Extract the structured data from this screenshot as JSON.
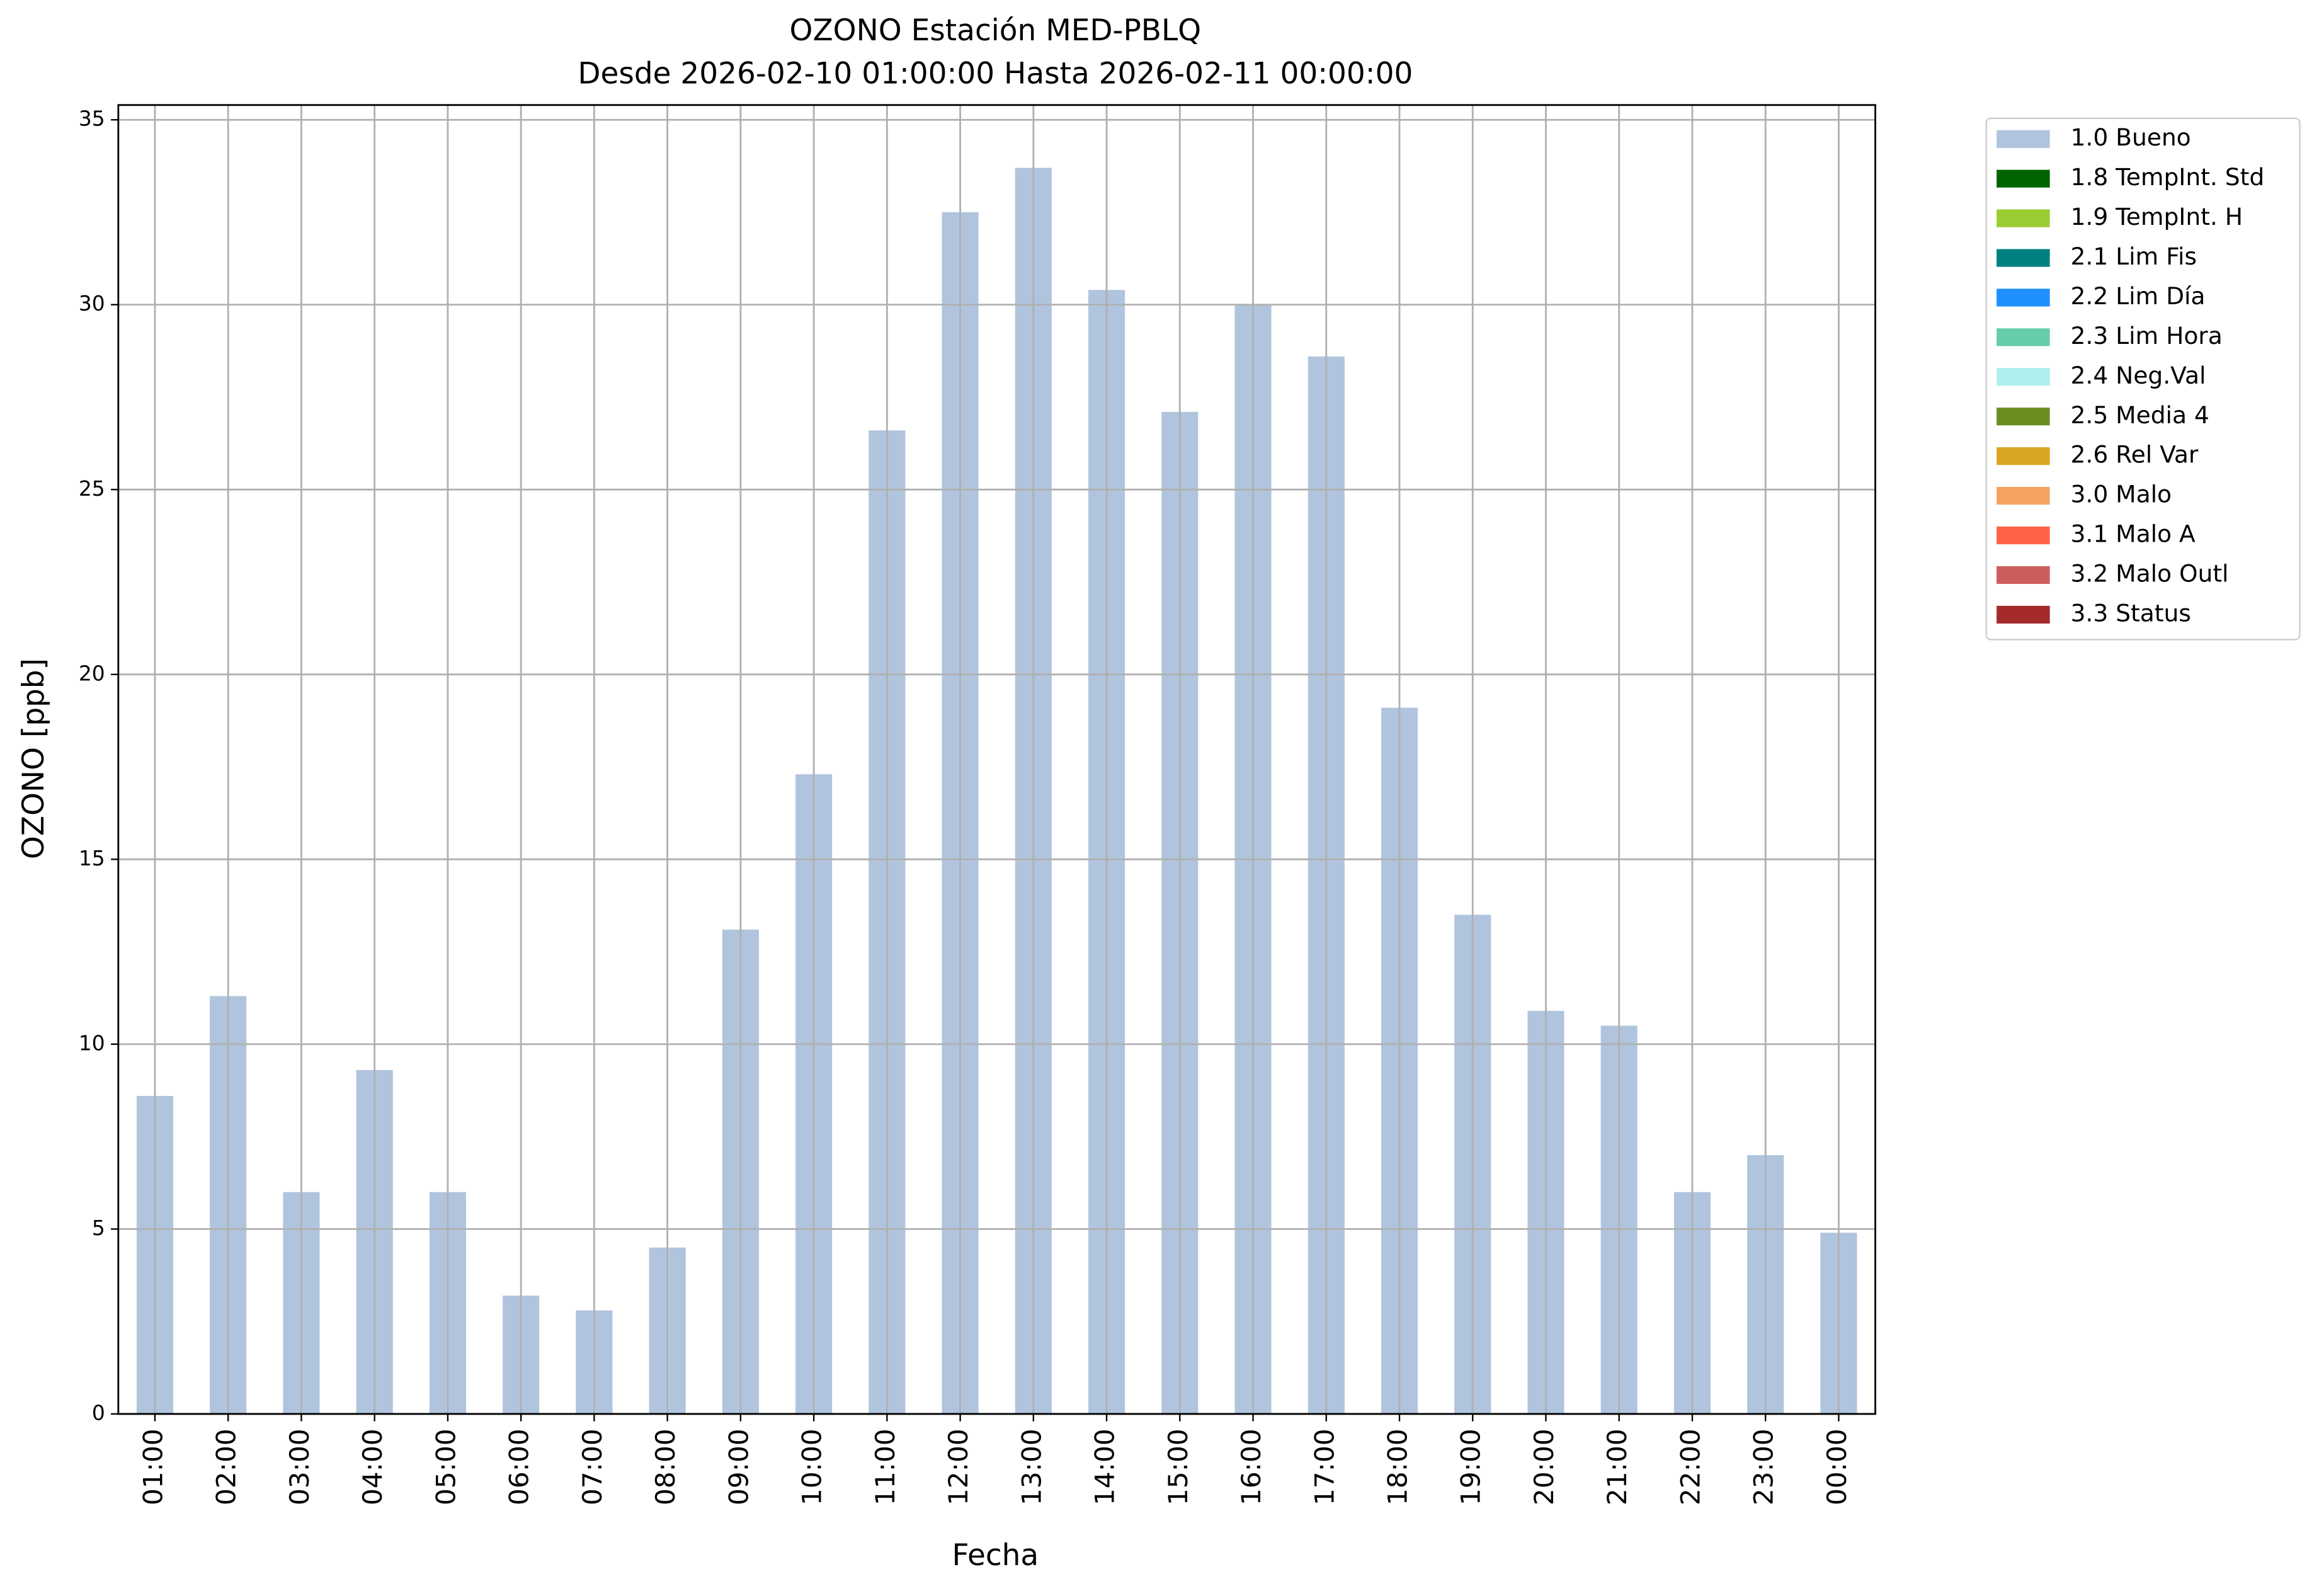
{
  "chart_data": {
    "type": "bar",
    "title": "OZONO Estación MED-PBLQ",
    "subtitle": "Desde 2026-02-10 01:00:00 Hasta 2026-02-11 00:00:00",
    "x_label": "Fecha",
    "y_label": "OZONO [ppb]",
    "categories": [
      "01:00",
      "02:00",
      "03:00",
      "04:00",
      "05:00",
      "06:00",
      "07:00",
      "08:00",
      "09:00",
      "10:00",
      "11:00",
      "12:00",
      "13:00",
      "14:00",
      "15:00",
      "16:00",
      "17:00",
      "18:00",
      "19:00",
      "20:00",
      "21:00",
      "22:00",
      "23:00",
      "00:00"
    ],
    "series": [
      {
        "name": "1.0 Bueno",
        "color": "#b0c4de",
        "values": [
          8.6,
          11.3,
          6.0,
          9.3,
          6.0,
          3.2,
          2.8,
          4.5,
          13.1,
          17.3,
          26.6,
          32.5,
          33.7,
          30.4,
          27.1,
          30.0,
          28.6,
          19.1,
          13.5,
          10.9,
          10.5,
          6.0,
          7.0,
          4.9
        ]
      }
    ],
    "legend_entries": [
      {
        "name": "1.0 Bueno",
        "color": "#b0c4de"
      },
      {
        "name": "1.8 TempInt. Std",
        "color": "#006400"
      },
      {
        "name": "1.9 TempInt. H",
        "color": "#9acd32"
      },
      {
        "name": "2.1 Lim Fis",
        "color": "#008080"
      },
      {
        "name": "2.2 Lim Día",
        "color": "#1e90ff"
      },
      {
        "name": "2.3 Lim Hora",
        "color": "#66cdaa"
      },
      {
        "name": "2.4 Neg.Val",
        "color": "#afeeee"
      },
      {
        "name": "2.5 Media 4",
        "color": "#6b8e23"
      },
      {
        "name": "2.6 Rel Var",
        "color": "#daa520"
      },
      {
        "name": "3.0 Malo",
        "color": "#f4a460"
      },
      {
        "name": "3.1 Malo A",
        "color": "#ff6347"
      },
      {
        "name": "3.2 Malo Outl",
        "color": "#cd5c5c"
      },
      {
        "name": "3.3 Status",
        "color": "#a52a2a"
      }
    ],
    "legend_position": "outside-upper-right",
    "ylim": [
      0,
      35.4
    ],
    "yticks": [
      0,
      5,
      10,
      15,
      20,
      25,
      30,
      35
    ],
    "grid": true
  }
}
